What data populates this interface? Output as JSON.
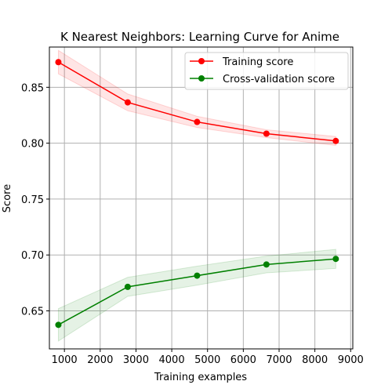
{
  "chart_data": {
    "type": "line",
    "title": "K Nearest Neighbors: Learning Curve for Anime",
    "xlabel": "Training examples",
    "ylabel": "Score",
    "xlim": [
      580,
      9060
    ],
    "ylim": [
      0.616,
      0.886
    ],
    "xticks": [
      1000,
      2000,
      3000,
      4000,
      5000,
      6000,
      7000,
      8000,
      9000
    ],
    "xtick_labels": [
      "1000",
      "2000",
      "3000",
      "4000",
      "5000",
      "6000",
      "7000",
      "8000",
      "9000"
    ],
    "yticks": [
      0.65,
      0.7,
      0.75,
      0.8,
      0.85
    ],
    "ytick_labels": [
      "0.65",
      "0.70",
      "0.75",
      "0.80",
      "0.85"
    ],
    "grid": true,
    "legend_position": "top-right",
    "x": [
      831,
      2769,
      4708,
      6646,
      8585
    ],
    "series": [
      {
        "name": "Training score",
        "color": "#ff0000",
        "values": [
          0.8725,
          0.8365,
          0.819,
          0.8085,
          0.802
        ],
        "band_lower": [
          0.862,
          0.829,
          0.814,
          0.805,
          0.798
        ],
        "band_upper": [
          0.883,
          0.844,
          0.824,
          0.812,
          0.806
        ]
      },
      {
        "name": "Cross-validation score",
        "color": "#008000",
        "values": [
          0.6375,
          0.6715,
          0.6815,
          0.6915,
          0.6965
        ],
        "band_lower": [
          0.623,
          0.663,
          0.673,
          0.684,
          0.688
        ],
        "band_upper": [
          0.652,
          0.68,
          0.69,
          0.699,
          0.705
        ]
      }
    ]
  }
}
